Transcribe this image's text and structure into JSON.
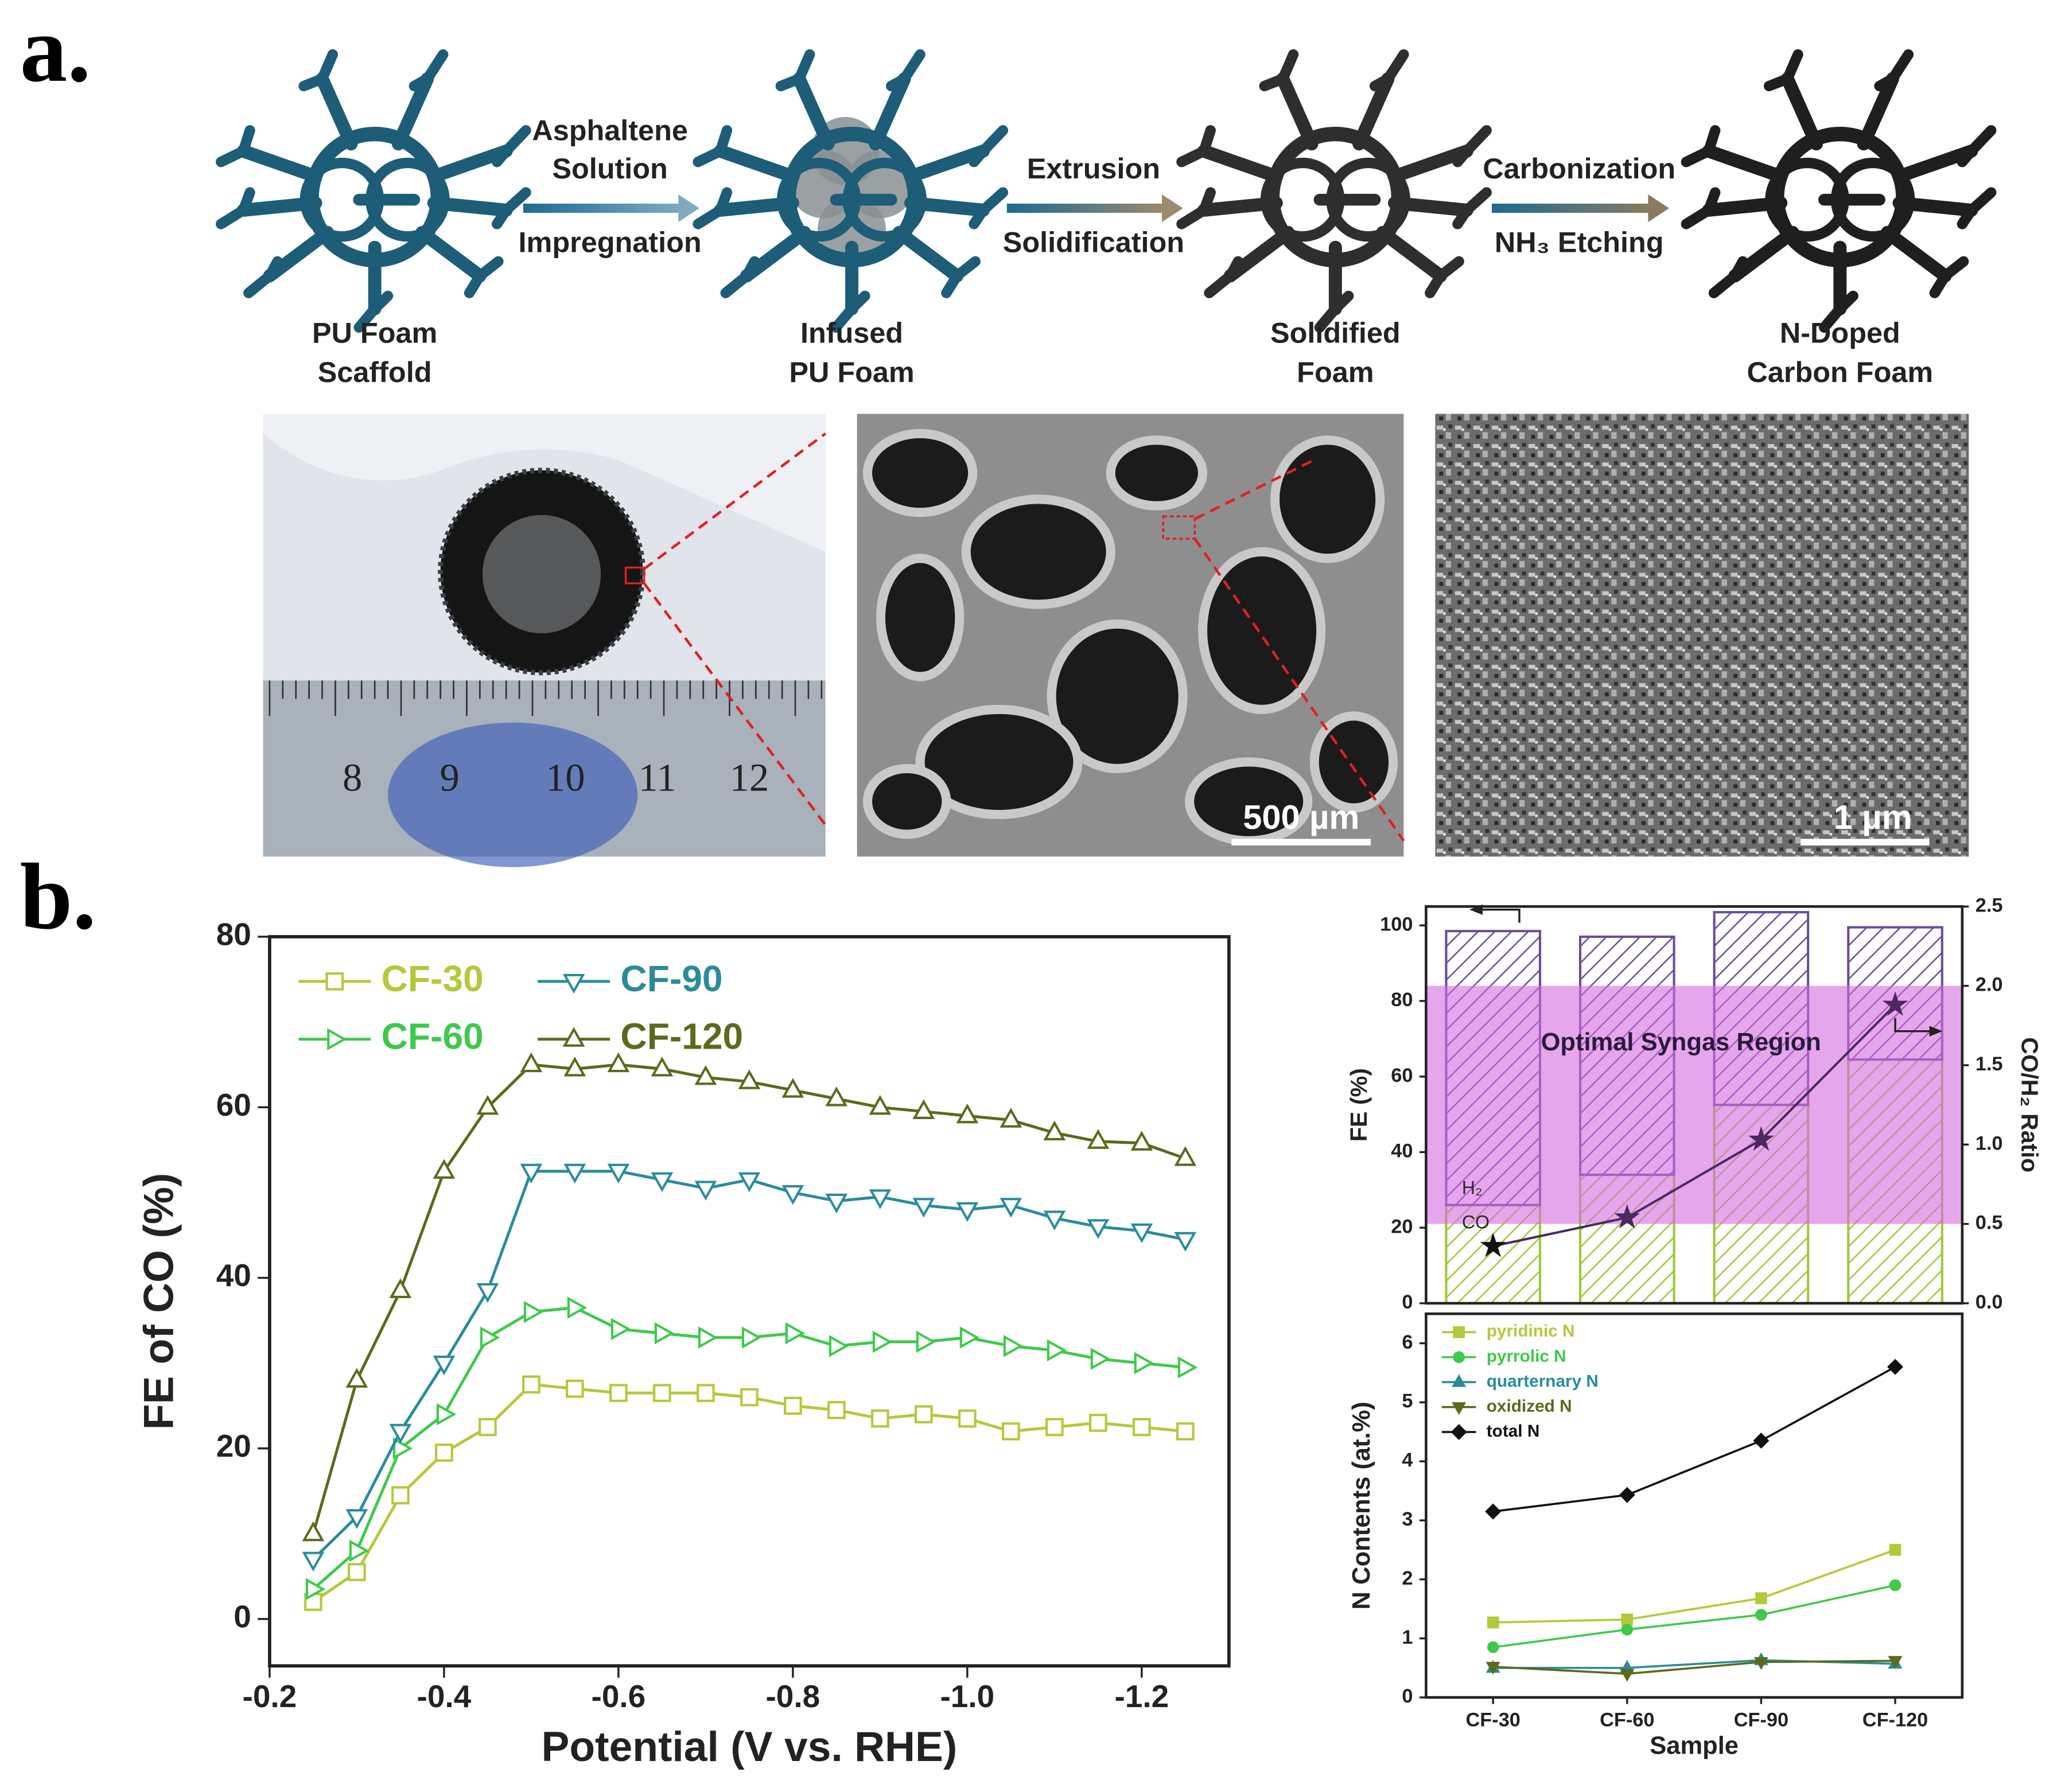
{
  "panel_a": {
    "label": "a.",
    "steps": [
      {
        "top": [
          "Asphaltene",
          "Solution"
        ],
        "bottom": [
          "Impregnation"
        ]
      },
      {
        "top": [
          "Extrusion"
        ],
        "bottom": [
          "Solidification"
        ]
      },
      {
        "top": [
          "Carbonization"
        ],
        "bottom": [
          "NH₃ Etching"
        ]
      }
    ],
    "stages": [
      [
        "PU Foam",
        "Scaffold"
      ],
      [
        "Infused",
        "PU Foam"
      ],
      [
        "Solidified",
        "Foam"
      ],
      [
        "N-Doped",
        "Carbon Foam"
      ]
    ],
    "ruler_numbers": [
      "8",
      "9",
      "10",
      "11",
      "12"
    ],
    "scale_bars": [
      "500 µm",
      "1 µm"
    ]
  },
  "panel_b": {
    "label": "b."
  },
  "chart_data": [
    {
      "type": "line",
      "xlabel": "Potential (V vs. RHE)",
      "ylabel": "FE of CO (%)",
      "x": [
        -0.25,
        -0.3,
        -0.35,
        -0.4,
        -0.45,
        -0.5,
        -0.55,
        -0.6,
        -0.65,
        -0.7,
        -0.75,
        -0.8,
        -0.85,
        -0.9,
        -0.95,
        -1.0,
        -1.05,
        -1.1,
        -1.15,
        -1.2,
        -1.25
      ],
      "xlim": [
        -0.2,
        -1.3
      ],
      "xticks": [
        -0.2,
        -0.4,
        -0.6,
        -0.8,
        {
          "value": -1,
          "label": "-1.0"
        },
        -1.2
      ],
      "ylim": [
        -5.5,
        80
      ],
      "yticks": [
        0,
        20,
        40,
        60,
        80
      ],
      "markers_hollow": true,
      "legend": "upper left",
      "series": [
        {
          "name": "CF-30",
          "color": "#b3c93a",
          "marker": "square",
          "values": [
            2,
            5.5,
            14.5,
            19.5,
            22.5,
            27.5,
            27,
            26.5,
            26.5,
            26.5,
            26,
            25,
            24.5,
            23.5,
            24,
            23.5,
            22,
            22.5,
            23,
            22.5,
            22
          ]
        },
        {
          "name": "CF-60",
          "color": "#3fc94b",
          "marker": "triangle-right",
          "values": [
            3.5,
            8,
            20,
            24,
            33,
            36,
            36.5,
            34,
            33.5,
            33,
            33,
            33.5,
            32,
            32.5,
            32.5,
            33,
            32,
            31.5,
            30.5,
            30,
            29.5
          ]
        },
        {
          "name": "CF-90",
          "color": "#2a8c9a",
          "marker": "triangle-down",
          "values": [
            7,
            12,
            22,
            30,
            38.5,
            52.5,
            52.5,
            52.5,
            51.5,
            50.5,
            51.5,
            50,
            49,
            49.5,
            48.5,
            48,
            48.5,
            47,
            46,
            45.5,
            44.5
          ]
        },
        {
          "name": "CF-120",
          "color": "#5b6a1c",
          "marker": "triangle-up",
          "values": [
            10,
            28,
            38.5,
            52.5,
            60,
            65,
            64.5,
            65,
            64.5,
            63.5,
            63,
            62,
            61,
            60,
            59.5,
            59,
            58.5,
            57,
            56,
            55.8,
            54
          ]
        }
      ]
    },
    {
      "type": "bar",
      "stacked": true,
      "ylabel": "FE (%)",
      "y2label": "CO/H₂ Ratio",
      "ylim": [
        0,
        105
      ],
      "yticks": [
        0,
        20,
        40,
        60,
        80,
        100
      ],
      "y2lim": [
        0,
        2.5
      ],
      "y2ticks": [
        {
          "value": 0,
          "label": "0.0"
        },
        0.5,
        {
          "value": 1,
          "label": "1.0"
        },
        1.5,
        {
          "value": 2,
          "label": "2.0"
        },
        2.5
      ],
      "region": {
        "label": "Optimal Syngas Region",
        "y2range": [
          0.5,
          2.0
        ],
        "color": "#d66be0"
      },
      "series": [
        {
          "name": "CO",
          "color": "#9cc93a",
          "values": [
            26,
            34,
            52.5,
            64.5
          ]
        },
        {
          "name": "H₂",
          "color": "#6a4c9c",
          "values": [
            72.5,
            63,
            51,
            35
          ]
        },
        {
          "type": "line",
          "axis": "y2",
          "color": "#4a2a5e",
          "marker": "star",
          "values": [
            0.36,
            0.54,
            1.03,
            1.88
          ]
        }
      ]
    },
    {
      "type": "line",
      "xlabel": "Sample",
      "ylabel": "N Contents (at.%)",
      "categories": [
        "CF-30",
        "CF-60",
        "CF-90",
        "CF-120"
      ],
      "ylim": [
        0,
        6.5
      ],
      "yticks": [
        0,
        1,
        2,
        3,
        4,
        5,
        6
      ],
      "legend": "upper left",
      "series": [
        {
          "name": "pyridinic N",
          "color": "#b3c93a",
          "marker": "square",
          "values": [
            1.27,
            1.32,
            1.68,
            2.5
          ]
        },
        {
          "name": "pyrrolic N",
          "color": "#3fc94b",
          "marker": "circle",
          "values": [
            0.85,
            1.15,
            1.4,
            1.9
          ]
        },
        {
          "name": "quarternary N",
          "color": "#2a8c9a",
          "marker": "triangle-up",
          "values": [
            0.5,
            0.5,
            0.63,
            0.57
          ]
        },
        {
          "name": "oxidized N",
          "color": "#5b6a1c",
          "marker": "triangle-down",
          "values": [
            0.52,
            0.4,
            0.6,
            0.62
          ]
        },
        {
          "name": "total N",
          "color": "#111111",
          "marker": "diamond",
          "values": [
            3.15,
            3.43,
            4.35,
            5.6
          ]
        }
      ]
    }
  ]
}
